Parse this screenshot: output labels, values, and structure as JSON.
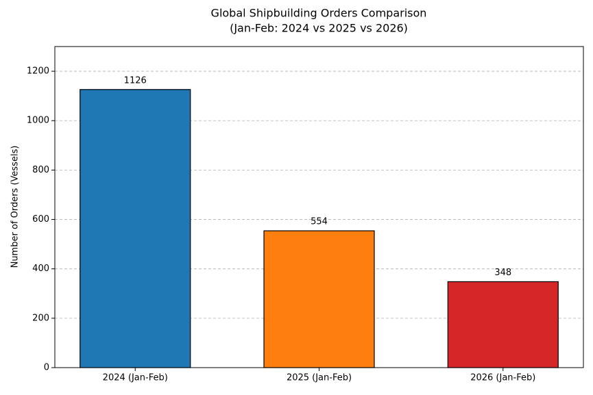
{
  "chart_data": {
    "type": "bar",
    "title": "Global Shipbuilding Orders Comparison",
    "subtitle": "(Jan-Feb: 2024 vs 2025 vs 2026)",
    "y_label": "Number of Orders (Vessels)",
    "categories": [
      "2024 (Jan-Feb)",
      "2025 (Jan-Feb)",
      "2026 (Jan-Feb)"
    ],
    "values": [
      1126,
      554,
      348
    ],
    "colors": [
      "#1f77b4",
      "#ff7f0e",
      "#d62728"
    ],
    "ylim": [
      0,
      1300
    ],
    "yticks": [
      0,
      200,
      400,
      600,
      800,
      1000,
      1200
    ],
    "grid": true
  }
}
